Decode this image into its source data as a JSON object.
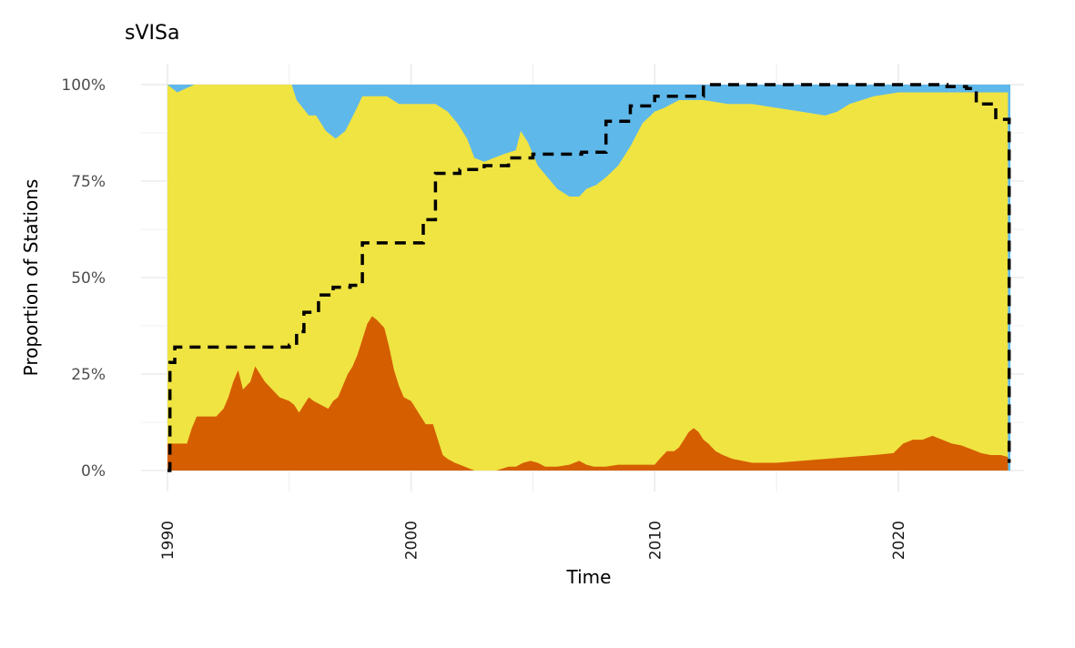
{
  "chart_data": {
    "type": "area",
    "subtype": "stacked-proportion-with-step-line",
    "title": "sVISa",
    "xlabel": "Time",
    "ylabel": "Proportion of Stations",
    "xlim": [
      1990.0,
      2024.6
    ],
    "ylim": [
      0,
      1
    ],
    "x_ticks": [
      1990,
      2000,
      2010,
      2020
    ],
    "x_tick_labels": [
      "1990",
      "2000",
      "2010",
      "2020"
    ],
    "y_ticks": [
      0,
      0.25,
      0.5,
      0.75,
      1.0
    ],
    "y_tick_labels": [
      "0%",
      "25%",
      "50%",
      "75%",
      "100%"
    ],
    "grid": true,
    "legend": "none",
    "colors": {
      "bottom": "#D55E00",
      "middle": "#F0E442",
      "top": "#56B4E9",
      "line": "#000000",
      "grid": "#EBEBEB",
      "background": "#FFFFFF"
    },
    "series": [
      {
        "key": "bottom",
        "x": [
          1990.0,
          1990.8,
          1991.0,
          1991.2,
          1992.0,
          1992.3,
          1992.5,
          1992.7,
          1992.9,
          1993.1,
          1993.4,
          1993.6,
          1993.8,
          1994.0,
          1994.3,
          1994.6,
          1995.0,
          1995.2,
          1995.4,
          1995.6,
          1995.8,
          1996.0,
          1996.3,
          1996.6,
          1996.8,
          1997.0,
          1997.2,
          1997.4,
          1997.6,
          1997.8,
          1998.0,
          1998.2,
          1998.4,
          1998.6,
          1998.9,
          1999.1,
          1999.3,
          1999.5,
          1999.7,
          2000.0,
          2000.2,
          2000.4,
          2000.6,
          2000.9,
          2001.1,
          2001.3,
          2001.5,
          2001.8,
          2002.2,
          2002.6,
          2003.0,
          2003.5,
          2004.0,
          2004.3,
          2004.6,
          2004.9,
          2005.2,
          2005.5,
          2006.0,
          2006.5,
          2006.9,
          2007.2,
          2007.5,
          2008.0,
          2008.5,
          2009.0,
          2009.5,
          2010.0,
          2010.2,
          2010.5,
          2010.8,
          2011.0,
          2011.2,
          2011.4,
          2011.6,
          2011.8,
          2012.0,
          2012.2,
          2012.5,
          2012.8,
          2013.2,
          2013.6,
          2014.0,
          2015.0,
          2016.0,
          2017.0,
          2018.0,
          2019.0,
          2019.8,
          2020.2,
          2020.6,
          2021.0,
          2021.4,
          2021.8,
          2022.2,
          2022.6,
          2023.0,
          2023.4,
          2023.8,
          2024.2,
          2024.5
        ],
        "values": [
          0.07,
          0.07,
          0.11,
          0.14,
          0.14,
          0.16,
          0.19,
          0.23,
          0.26,
          0.21,
          0.23,
          0.27,
          0.25,
          0.23,
          0.21,
          0.19,
          0.18,
          0.17,
          0.15,
          0.17,
          0.19,
          0.18,
          0.17,
          0.16,
          0.18,
          0.19,
          0.22,
          0.25,
          0.27,
          0.3,
          0.34,
          0.38,
          0.4,
          0.39,
          0.37,
          0.32,
          0.26,
          0.22,
          0.19,
          0.18,
          0.16,
          0.14,
          0.12,
          0.12,
          0.08,
          0.04,
          0.03,
          0.02,
          0.01,
          0.0,
          0.0,
          0.0,
          0.01,
          0.01,
          0.02,
          0.025,
          0.02,
          0.01,
          0.01,
          0.015,
          0.025,
          0.015,
          0.01,
          0.01,
          0.015,
          0.015,
          0.015,
          0.015,
          0.03,
          0.05,
          0.05,
          0.06,
          0.08,
          0.1,
          0.11,
          0.1,
          0.08,
          0.07,
          0.05,
          0.04,
          0.03,
          0.025,
          0.02,
          0.02,
          0.025,
          0.03,
          0.035,
          0.04,
          0.045,
          0.07,
          0.08,
          0.08,
          0.09,
          0.08,
          0.07,
          0.065,
          0.055,
          0.045,
          0.04,
          0.04,
          0.035
        ]
      },
      {
        "key": "top",
        "x": [
          1990.0,
          1990.4,
          1991.1,
          1995.1,
          1995.3,
          1995.8,
          1996.1,
          1996.5,
          1996.9,
          1997.3,
          1997.7,
          1998.0,
          1998.6,
          1999.0,
          1999.5,
          2000.0,
          2001.0,
          2001.5,
          2001.9,
          2002.3,
          2002.6,
          2003.0,
          2003.4,
          2003.8,
          2004.3,
          2004.5,
          2004.8,
          2005.2,
          2005.6,
          2006.0,
          2006.5,
          2006.9,
          2007.2,
          2007.6,
          2008.0,
          2008.5,
          2009.0,
          2009.5,
          2010.0,
          2010.4,
          2011.0,
          2012.0,
          2013.0,
          2014.0,
          2015.0,
          2016.0,
          2017.0,
          2017.5,
          2018.0,
          2019.0,
          2020.0,
          2021.0,
          2022.0,
          2023.0,
          2024.0,
          2024.5
        ],
        "values": [
          0.0,
          0.02,
          0.0,
          0.0,
          0.04,
          0.08,
          0.08,
          0.12,
          0.14,
          0.12,
          0.07,
          0.03,
          0.03,
          0.03,
          0.05,
          0.05,
          0.05,
          0.07,
          0.1,
          0.14,
          0.19,
          0.2,
          0.19,
          0.18,
          0.17,
          0.12,
          0.15,
          0.21,
          0.24,
          0.27,
          0.29,
          0.29,
          0.27,
          0.26,
          0.24,
          0.21,
          0.16,
          0.1,
          0.07,
          0.06,
          0.04,
          0.04,
          0.05,
          0.05,
          0.06,
          0.07,
          0.08,
          0.07,
          0.05,
          0.03,
          0.02,
          0.02,
          0.02,
          0.02,
          0.02,
          0.02
        ]
      },
      {
        "key": "line",
        "style": "dashed-step",
        "x": [
          1990.0,
          1990.1,
          1990.3,
          1993.0,
          1995.0,
          1995.3,
          1995.6,
          1996.2,
          1996.8,
          1997.5,
          1998.0,
          1999.0,
          2000.0,
          2000.5,
          2001.0,
          2002.0,
          2003.0,
          2004.0,
          2005.0,
          2006.0,
          2007.0,
          2008.0,
          2009.0,
          2010.0,
          2012.0,
          2015.0,
          2018.0,
          2020.0,
          2021.0,
          2022.0,
          2022.8,
          2023.2,
          2024.0,
          2024.55
        ],
        "values": [
          0.0,
          0.28,
          0.32,
          0.32,
          0.325,
          0.36,
          0.41,
          0.455,
          0.475,
          0.48,
          0.59,
          0.59,
          0.59,
          0.65,
          0.77,
          0.78,
          0.79,
          0.81,
          0.82,
          0.82,
          0.825,
          0.905,
          0.945,
          0.97,
          1.0,
          1.0,
          1.0,
          1.0,
          1.0,
          0.995,
          0.99,
          0.95,
          0.91,
          0.02
        ]
      }
    ]
  }
}
